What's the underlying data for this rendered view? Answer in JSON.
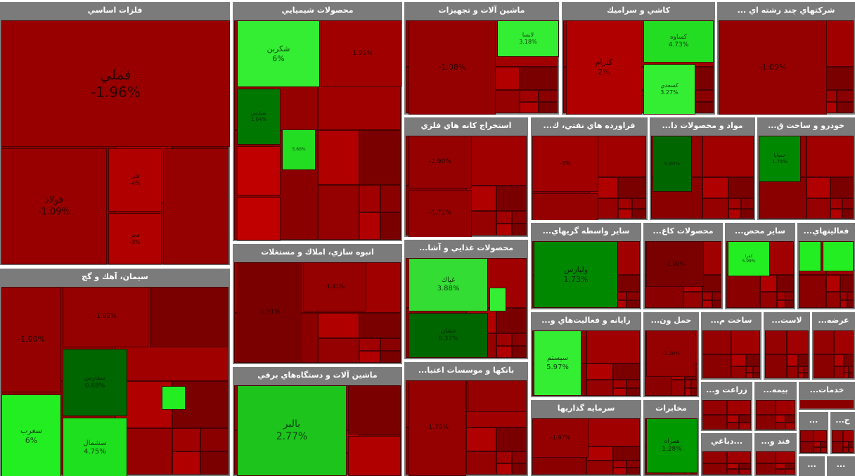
{
  "chart_data": {
    "type": "treemap",
    "sectors": [
      {
        "id": "s1",
        "name": "فلزات اساسي",
        "tiles": [
          {
            "symbol": "فملي",
            "change": "-1.96%",
            "color": "#980000",
            "fs": 20
          },
          {
            "symbol": "فولاد",
            "change": "-1.09%",
            "color": "#980000",
            "fs": 13
          },
          {
            "symbol": "فلي",
            "change": "-4%",
            "color": "#b00000",
            "fs": 8
          },
          {
            "symbol": "فخز",
            "change": "-3%",
            "color": "#b00000",
            "fs": 8
          },
          {
            "symbol": "",
            "change": "",
            "color": "#950000",
            "fs": 7
          }
        ]
      },
      {
        "id": "s2",
        "name": "محصولات شيميايي",
        "tiles": [
          {
            "symbol": "شكربن",
            "change": "6%",
            "color": "#33ee33",
            "fs": 11
          },
          {
            "symbol": "",
            "change": "-1.99%",
            "color": "#a00000",
            "fs": 9
          },
          {
            "symbol": "شبارس",
            "change": "1.04%",
            "color": "#007700",
            "fs": 7
          },
          {
            "symbol": "",
            "change": "5.60%",
            "color": "#22dd22",
            "fs": 6
          },
          {
            "symbol": "",
            "change": "",
            "color": "#c00000",
            "fs": 6
          },
          {
            "symbol": "",
            "change": "",
            "color": "#c00000",
            "fs": 6
          }
        ]
      },
      {
        "id": "s3",
        "name": "سيمان، آهك و گچ",
        "tiles": [
          {
            "symbol": "",
            "change": "-1.90%",
            "color": "#950000",
            "fs": 11
          },
          {
            "symbol": "",
            "change": "-1.92%",
            "color": "#950000",
            "fs": 9
          },
          {
            "symbol": "",
            "change": "",
            "color": "#7a0000",
            "fs": 8
          },
          {
            "symbol": "سفارس",
            "change": "0.88%",
            "color": "#006600",
            "fs": 9
          },
          {
            "symbol": "سغرب",
            "change": "6%",
            "color": "#22ee22",
            "fs": 11
          },
          {
            "symbol": "سشمال",
            "change": "4.75%",
            "color": "#1ee01e",
            "fs": 10
          },
          {
            "symbol": "",
            "change": "",
            "color": "#22ee22",
            "fs": 6
          }
        ]
      },
      {
        "id": "s4",
        "name": "انبوه سازي، املاك و مستغلات",
        "tiles": [
          {
            "symbol": "",
            "change": "-0.91%",
            "color": "#7a0000",
            "fs": 9
          },
          {
            "symbol": "",
            "change": "-1.41%",
            "color": "#950000",
            "fs": 8
          }
        ]
      },
      {
        "id": "s5",
        "name": "ماشين آلات و دستگاه‌هاي برقي",
        "tiles": [
          {
            "symbol": "بالبر",
            "change": "2.77%",
            "color": "#1cc41c",
            "fs": 14
          },
          {
            "symbol": "",
            "change": "",
            "color": "#7a0000",
            "fs": 7
          },
          {
            "symbol": "",
            "change": "",
            "color": "#b00000",
            "fs": 7
          }
        ]
      },
      {
        "id": "s6",
        "name": "ماشين آلات و تجهيزات",
        "tiles": [
          {
            "symbol": "",
            "change": "-1.08%",
            "color": "#950000",
            "fs": 11
          },
          {
            "symbol": "لابسا",
            "change": "3.18%",
            "color": "#33ee33",
            "fs": 8
          }
        ]
      },
      {
        "id": "s7",
        "name": "استخراج كانه هاي فلزي",
        "tiles": [
          {
            "symbol": "",
            "change": "-1.90%",
            "color": "#950000",
            "fs": 9
          },
          {
            "symbol": "",
            "change": "-1.71%",
            "color": "#950000",
            "fs": 9
          }
        ]
      },
      {
        "id": "s8",
        "name": "محصولات غذايي و آشا...",
        "tiles": [
          {
            "symbol": "غپاك",
            "change": "3.88%",
            "color": "#33dd33",
            "fs": 10
          },
          {
            "symbol": "غشان",
            "change": "0.37%",
            "color": "#006600",
            "fs": 9
          },
          {
            "symbol": "",
            "change": "",
            "color": "#33ee33",
            "fs": 5
          }
        ]
      },
      {
        "id": "s9",
        "name": "بانكها و موسسات اعتبا...",
        "tiles": [
          {
            "symbol": "",
            "change": "-1.70%",
            "color": "#950000",
            "fs": 9
          },
          {
            "symbol": "",
            "change": "",
            "color": "#950000",
            "fs": 7
          }
        ]
      },
      {
        "id": "s10",
        "name": "كاشي و سراميك",
        "tiles": [
          {
            "symbol": "كترام",
            "change": "2%",
            "color": "#b00000",
            "fs": 11
          },
          {
            "symbol": "كساوه",
            "change": "4.73%",
            "color": "#22dd22",
            "fs": 9
          },
          {
            "symbol": "كسعدي",
            "change": "3.27%",
            "color": "#33ee33",
            "fs": 8
          }
        ]
      },
      {
        "id": "s11",
        "name": "شركتهاي چند رشته اي ...",
        "tiles": [
          {
            "symbol": "",
            "change": "-1.09%",
            "color": "#950000",
            "fs": 11
          }
        ]
      },
      {
        "id": "s12",
        "name": "فراورده هاي نفتي، ك...",
        "tiles": [
          {
            "symbol": "",
            "change": "-3%",
            "color": "#a00000",
            "fs": 8
          },
          {
            "symbol": "",
            "change": "",
            "color": "#950000",
            "fs": 7
          }
        ]
      },
      {
        "id": "s13",
        "name": "مواد و محصولات دا...",
        "tiles": [
          {
            "symbol": "",
            "change": "0.60%",
            "color": "#006600",
            "fs": 7
          }
        ]
      },
      {
        "id": "s14",
        "name": "خودرو و ساخت ق...",
        "tiles": [
          {
            "symbol": "خساپا",
            "change": "1.75%",
            "color": "#008800",
            "fs": 7
          }
        ]
      },
      {
        "id": "s15",
        "name": "ساير واسطه گريهاي...",
        "tiles": [
          {
            "symbol": "ولپارس",
            "change": "1.73%",
            "color": "#008800",
            "fs": 11
          }
        ]
      },
      {
        "id": "s16",
        "name": "محصولات كاغ...",
        "tiles": [
          {
            "symbol": "",
            "change": "-1.90%",
            "color": "#7a0000",
            "fs": 8
          }
        ]
      },
      {
        "id": "s17",
        "name": "ساير محص...",
        "tiles": [
          {
            "symbol": "كفرا",
            "change": "5.99%",
            "color": "#22ee22",
            "fs": 6
          }
        ]
      },
      {
        "id": "s18",
        "name": "فعاليتهاي...",
        "tiles": [
          {
            "symbol": "",
            "change": "",
            "color": "#22ee22",
            "fs": 5
          },
          {
            "symbol": "",
            "change": "",
            "color": "#22ee22",
            "fs": 5
          }
        ]
      },
      {
        "id": "s19",
        "name": "رايانه و فعاليت‌هاي و...",
        "tiles": [
          {
            "symbol": "سيستم",
            "change": "5.97%",
            "color": "#33ee33",
            "fs": 10
          }
        ]
      },
      {
        "id": "s20",
        "name": "حمل ون...",
        "tiles": [
          {
            "symbol": "",
            "change": "-1.20%",
            "color": "#950000",
            "fs": 7
          }
        ]
      },
      {
        "id": "s21",
        "name": "ساخت م...",
        "tiles": []
      },
      {
        "id": "s22",
        "name": "لاست...",
        "tiles": []
      },
      {
        "id": "s23",
        "name": "عرضه...",
        "tiles": []
      },
      {
        "id": "s24",
        "name": "سرمايه گذاريها",
        "tiles": [
          {
            "symbol": "",
            "change": "-1.97%",
            "color": "#950000",
            "fs": 8
          }
        ]
      },
      {
        "id": "s25",
        "name": "مخابرات",
        "tiles": [
          {
            "symbol": "همراه",
            "change": "1.28%",
            "color": "#009900",
            "fs": 9
          }
        ]
      },
      {
        "id": "s26",
        "name": "زراعت و...",
        "tiles": []
      },
      {
        "id": "s27",
        "name": "بيمه...",
        "tiles": []
      },
      {
        "id": "s28",
        "name": "خدمات...",
        "tiles": []
      },
      {
        "id": "s29",
        "name": "...دباغي",
        "tiles": []
      },
      {
        "id": "s30",
        "name": "قند و...",
        "tiles": []
      },
      {
        "id": "s31",
        "name": "...",
        "tiles": []
      },
      {
        "id": "s32",
        "name": "ح...",
        "tiles": []
      },
      {
        "id": "s33",
        "name": "...",
        "tiles": []
      },
      {
        "id": "s34",
        "name": "...",
        "tiles": []
      }
    ]
  }
}
